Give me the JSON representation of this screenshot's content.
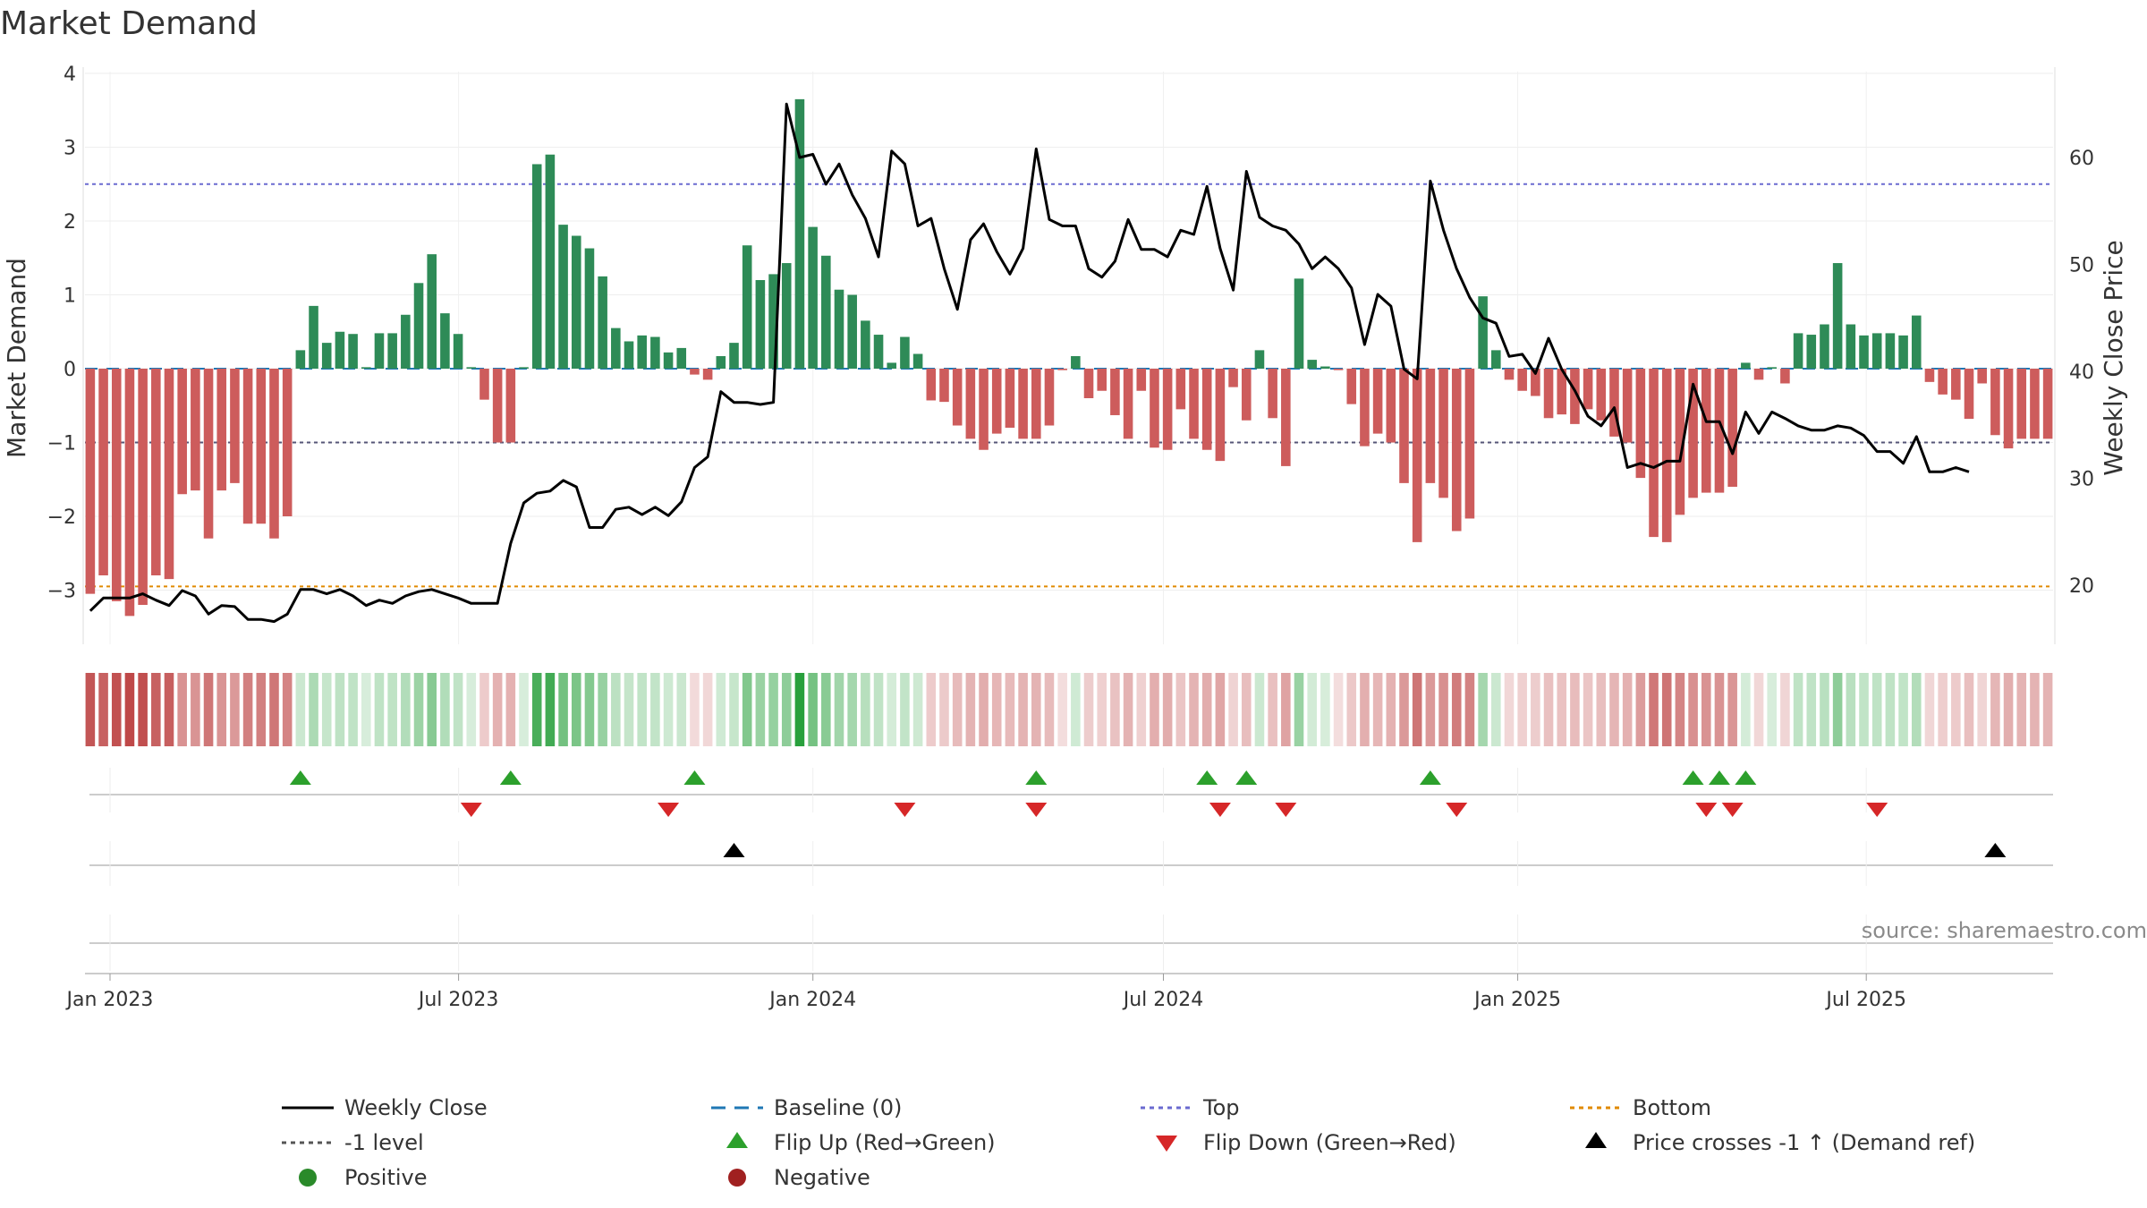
{
  "chart_data": {
    "type": "bar",
    "title": "Market Demand",
    "ylabel": "Market Demand",
    "y2label": "Weekly Close Price",
    "ylim": [
      -3.7,
      4.0
    ],
    "yticks": [
      4,
      3,
      2,
      1,
      0,
      -1,
      -2,
      -3
    ],
    "ytick_labels": [
      "4",
      "3",
      "2",
      "1",
      "0",
      "−1",
      "−2",
      "−3"
    ],
    "y2lim": [
      14.6,
      67.8
    ],
    "y2ticks": [
      60,
      50,
      40,
      30,
      20
    ],
    "y2tick_labels": [
      "60",
      "50",
      "40",
      "30",
      "20"
    ],
    "x_start": "2022-12-19",
    "x_end": "2025-10-06",
    "xticks": [
      {
        "date": "2023-01-01",
        "label": "Jan 2023"
      },
      {
        "date": "2023-07-01",
        "label": "Jul 2023"
      },
      {
        "date": "2024-01-01",
        "label": "Jan 2024"
      },
      {
        "date": "2024-07-01",
        "label": "Jul 2024"
      },
      {
        "date": "2025-01-01",
        "label": "Jan 2025"
      },
      {
        "date": "2025-07-01",
        "label": "Jul 2025"
      }
    ],
    "reference_lines": [
      {
        "name": "Baseline (0)",
        "value": 0,
        "color": "#1f77b4",
        "style": "dashed"
      },
      {
        "name": "Top",
        "value": 2.5,
        "color": "#6a6ad0",
        "style": "dotted"
      },
      {
        "name": "-1 level",
        "value": -1,
        "color": "#555577",
        "style": "dotted"
      },
      {
        "name": "Bottom",
        "value": -2.95,
        "color": "#e08a00",
        "style": "dotted"
      }
    ],
    "demand": [
      -3.05,
      -2.8,
      -3.15,
      -3.35,
      -3.2,
      -2.8,
      -2.85,
      -1.7,
      -1.65,
      -2.3,
      -1.65,
      -1.55,
      -2.1,
      -2.1,
      -2.3,
      -2.0,
      0.25,
      0.85,
      0.35,
      0.5,
      0.47,
      0.02,
      0.48,
      0.48,
      0.73,
      1.16,
      1.55,
      0.75,
      0.47,
      0.02,
      -0.42,
      -1.0,
      -1.0,
      0.02,
      2.77,
      2.9,
      1.95,
      1.8,
      1.63,
      1.25,
      0.55,
      0.37,
      0.45,
      0.43,
      0.22,
      0.28,
      -0.08,
      -0.15,
      0.17,
      0.35,
      1.67,
      1.2,
      1.28,
      1.43,
      3.65,
      1.92,
      1.53,
      1.07,
      1.0,
      0.65,
      0.46,
      0.08,
      0.43,
      0.2,
      -0.43,
      -0.45,
      -0.77,
      -0.95,
      -1.1,
      -0.88,
      -0.8,
      -0.95,
      -0.95,
      -0.77,
      -0.02,
      0.17,
      -0.4,
      -0.3,
      -0.63,
      -0.95,
      -0.3,
      -1.07,
      -1.1,
      -0.55,
      -0.95,
      -1.1,
      -1.25,
      -0.25,
      -0.7,
      0.25,
      -0.67,
      -1.32,
      1.22,
      0.12,
      0.03,
      -0.02,
      -0.48,
      -1.05,
      -0.88,
      -1.0,
      -1.55,
      -2.35,
      -1.55,
      -1.75,
      -2.2,
      -2.03,
      0.98,
      0.25,
      -0.15,
      -0.3,
      -0.37,
      -0.67,
      -0.62,
      -0.75,
      -0.55,
      -0.7,
      -0.92,
      -1.0,
      -1.48,
      -2.28,
      -2.35,
      -1.98,
      -1.75,
      -1.68,
      -1.68,
      -1.6,
      0.08,
      -0.15,
      0.02,
      -0.2,
      0.48,
      0.46,
      0.6,
      1.43,
      0.6,
      0.45,
      0.48,
      0.48,
      0.45,
      0.72,
      -0.18,
      -0.35,
      -0.42,
      -0.68,
      -0.2,
      -0.9,
      -1.08,
      -0.95,
      -0.95,
      -0.95
    ],
    "price": [
      17.6,
      18.8,
      18.8,
      18.8,
      19.2,
      18.6,
      18.1,
      19.5,
      19.0,
      17.3,
      18.1,
      18.0,
      16.8,
      16.8,
      16.6,
      17.3,
      19.6,
      19.6,
      19.2,
      19.6,
      19.0,
      18.1,
      18.6,
      18.3,
      19.0,
      19.4,
      19.6,
      19.2,
      18.8,
      18.3,
      18.3,
      18.3,
      23.9,
      27.7,
      28.6,
      28.8,
      29.8,
      29.2,
      25.4,
      25.4,
      27.1,
      27.3,
      26.6,
      27.3,
      26.5,
      27.8,
      31.0,
      32.0,
      38.1,
      37.1,
      37.1,
      36.9,
      37.1,
      65.0,
      60.0,
      60.3,
      57.5,
      59.4,
      56.5,
      54.3,
      50.7,
      60.6,
      59.4,
      53.6,
      54.3,
      49.6,
      45.8,
      52.3,
      53.8,
      51.2,
      49.1,
      51.5,
      60.8,
      54.2,
      53.6,
      53.6,
      49.6,
      48.8,
      50.3,
      54.2,
      51.4,
      51.4,
      50.7,
      53.2,
      52.8,
      57.3,
      51.5,
      47.6,
      58.7,
      54.4,
      53.6,
      53.2,
      51.9,
      49.6,
      50.7,
      49.6,
      47.8,
      42.5,
      47.2,
      46.1,
      40.2,
      39.3,
      57.8,
      53.2,
      49.6,
      46.9,
      45.0,
      44.5,
      41.4,
      41.6,
      39.8,
      43.1,
      40.2,
      38.2,
      35.8,
      34.9,
      36.6,
      31.0,
      31.4,
      31.0,
      31.6,
      31.6,
      38.8,
      35.3,
      35.3,
      32.3,
      36.2,
      34.2,
      36.2,
      35.6,
      34.9,
      34.5,
      34.5,
      34.9,
      34.7,
      34.0,
      32.5,
      32.5,
      31.4,
      33.9,
      30.6,
      30.6,
      31.0,
      30.6
    ],
    "flip_up_weeks": [
      16,
      32,
      46,
      72,
      85,
      88,
      102,
      122,
      124,
      126
    ],
    "flip_down_weeks": [
      29,
      44,
      62,
      72,
      86,
      91,
      104,
      123,
      125,
      136
    ],
    "price_cross_weeks": [
      49,
      145
    ],
    "legend": [
      {
        "label": "Weekly Close",
        "marker": "line",
        "color": "#000000"
      },
      {
        "label": "Baseline (0)",
        "marker": "dashed",
        "color": "#1f77b4"
      },
      {
        "label": "Top",
        "marker": "dotted",
        "color": "#6a6ad0"
      },
      {
        "label": "Bottom",
        "marker": "dotted",
        "color": "#e08a00"
      },
      {
        "label": "-1 level",
        "marker": "dotted",
        "color": "#555555"
      },
      {
        "label": "Flip Up (Red→Green)",
        "marker": "triangle-up",
        "color": "#2ca02c"
      },
      {
        "label": "Flip Down (Green→Red)",
        "marker": "triangle-down",
        "color": "#d62728"
      },
      {
        "label": "Price crosses -1 ↑ (Demand ref)",
        "marker": "triangle-up",
        "color": "#000000"
      },
      {
        "label": "Positive",
        "marker": "circle",
        "color": "#2a8a2a"
      },
      {
        "label": "Negative",
        "marker": "circle",
        "color": "#a02020"
      }
    ],
    "source_note": "source: sharemaestro.com",
    "colors": {
      "positive": "#2e8b57",
      "negative": "#cd5c5c",
      "price": "#000000"
    }
  }
}
